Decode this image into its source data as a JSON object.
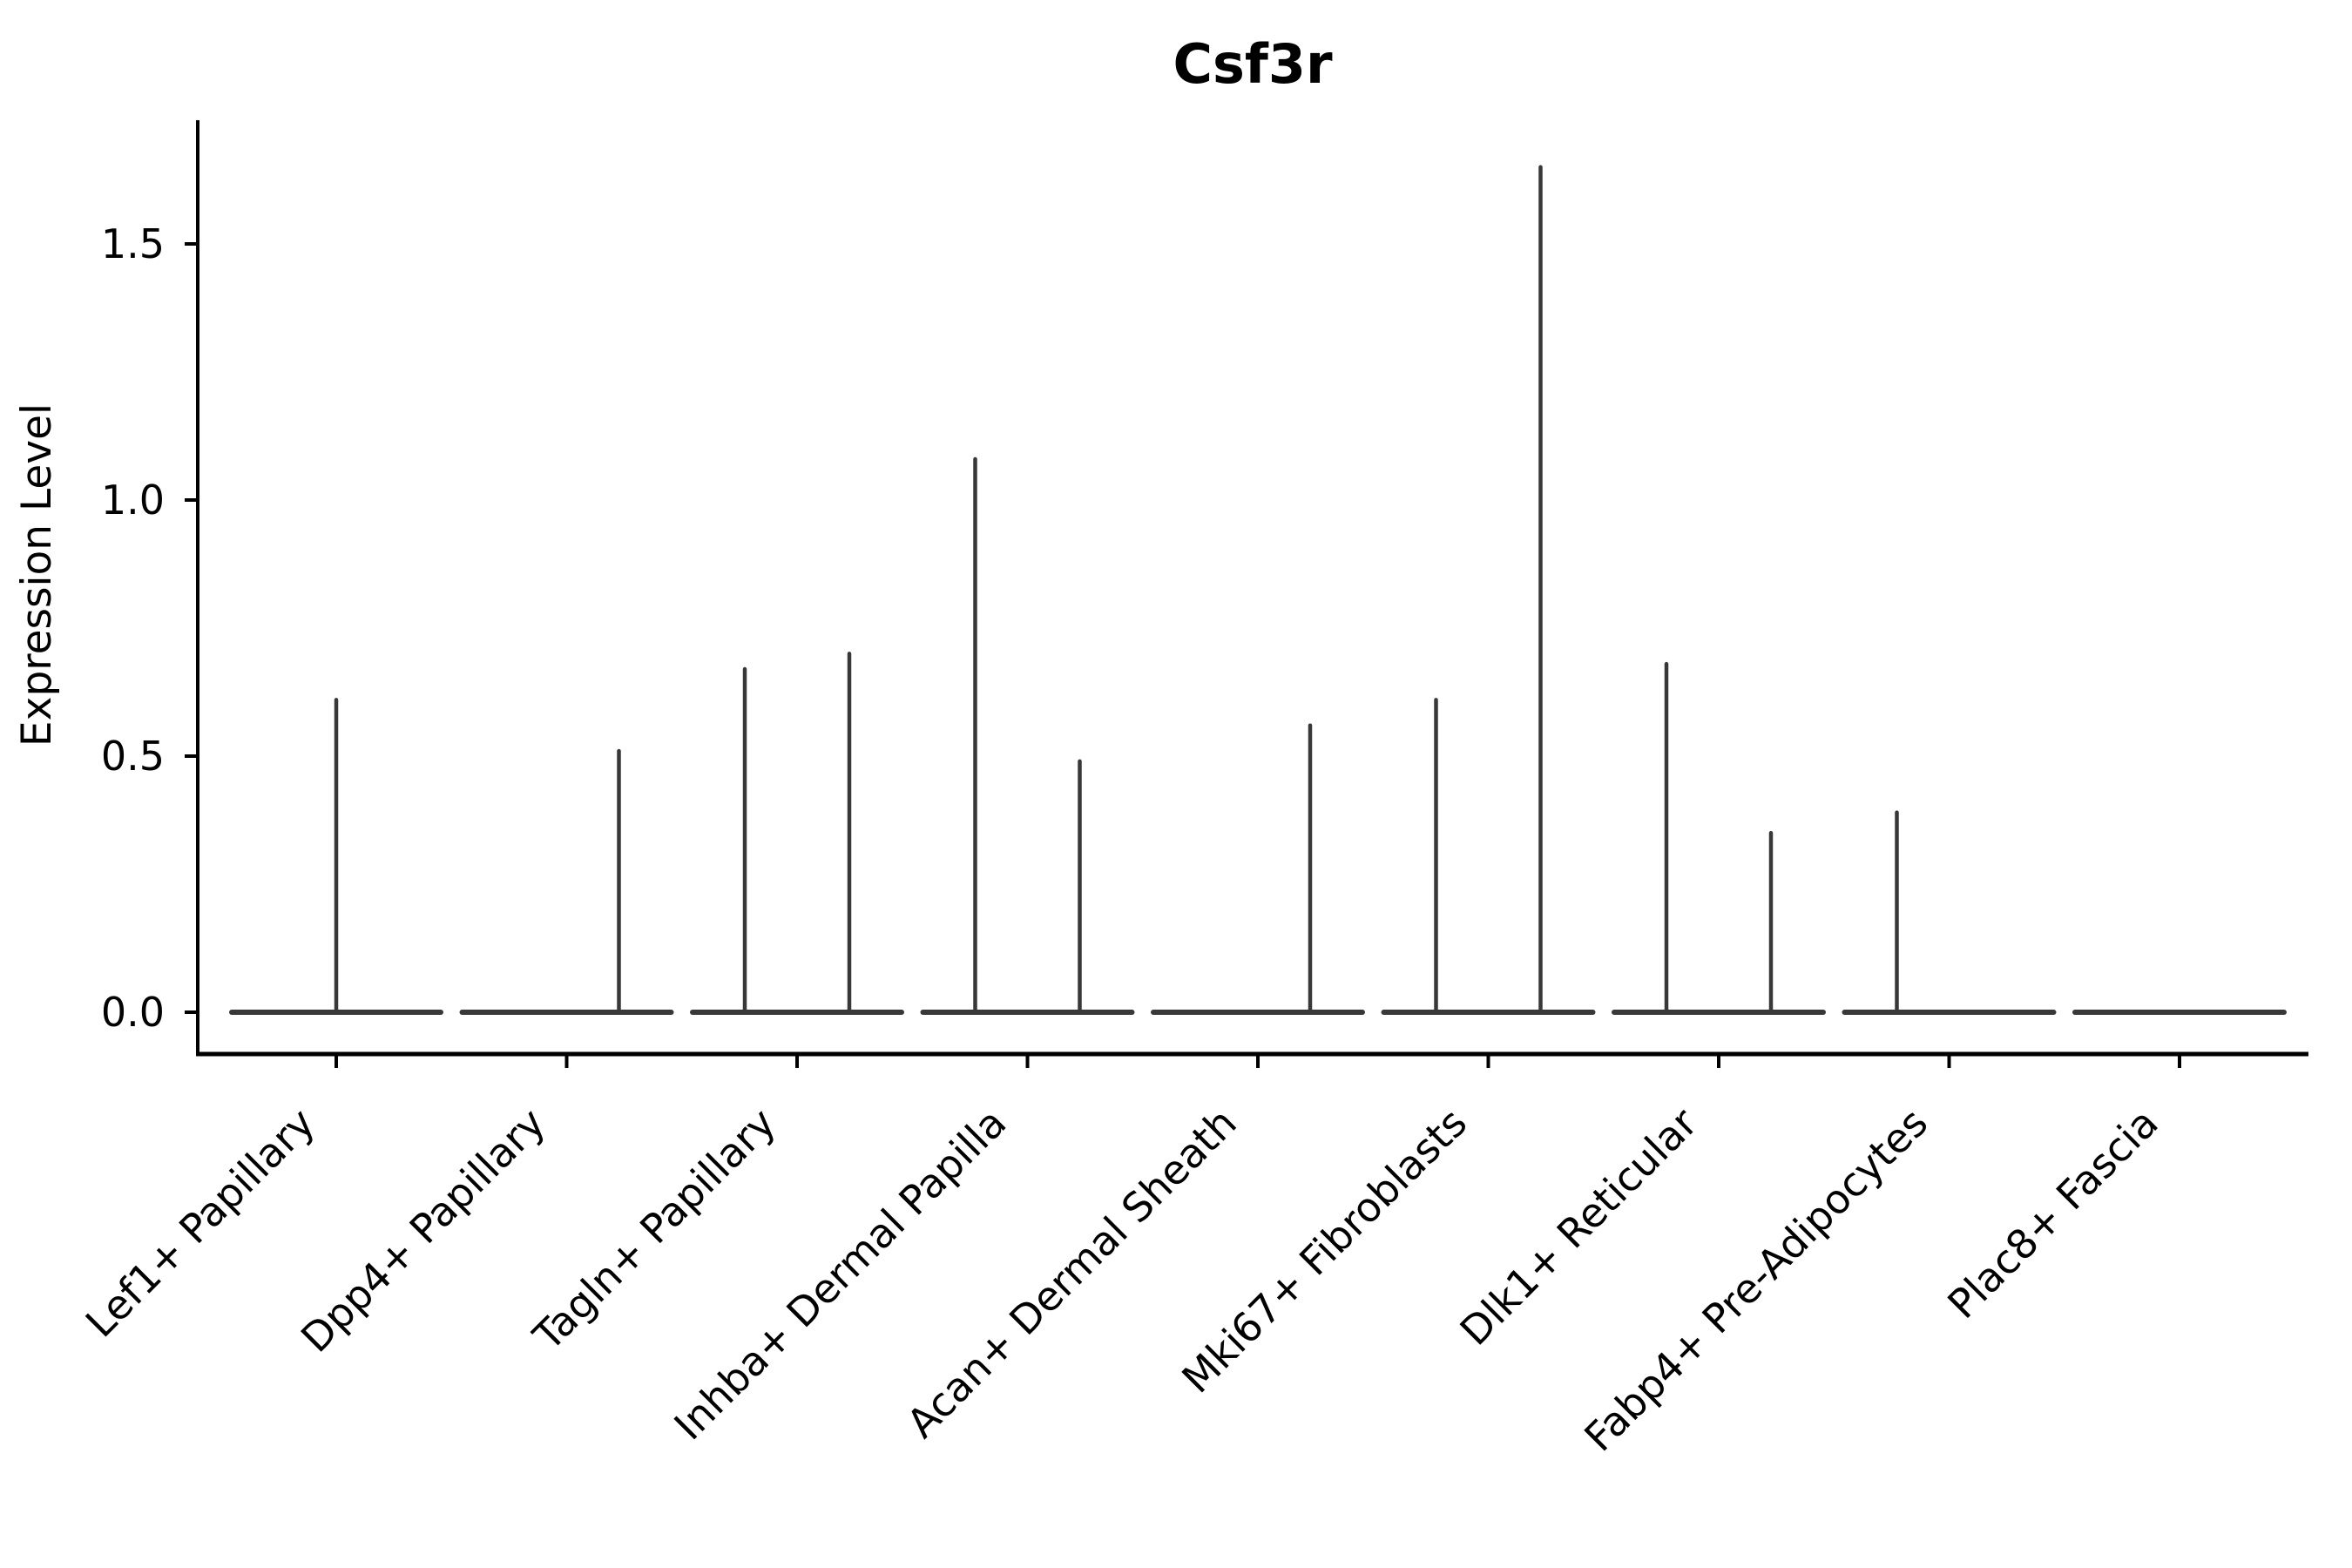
{
  "figure": {
    "title": "Csf3r"
  },
  "chart_data": {
    "type": "violin",
    "title": "Csf3r",
    "xlabel": "",
    "ylabel": "Expression Level",
    "yticks": [
      "0.0",
      "0.5",
      "1.0",
      "1.5"
    ],
    "ytick_values": [
      0.0,
      0.5,
      1.0,
      1.5
    ],
    "ylim": [
      -0.085,
      1.74
    ],
    "grid": false,
    "legend": "none",
    "x_tick_rotation": 45,
    "categories": [
      "Lef1+ Papillary",
      "Dpp4+ Papillary",
      "Tagln+ Papillary",
      "Inhba+ Dermal Papilla",
      "Acan+ Dermal Sheath",
      "Mki67+ Fibroblasts",
      "Dlk1+ Reticular",
      "Fabp4+ Pre-Adipocytes",
      "Plac8+ Fascia"
    ],
    "violins": [
      {
        "category": "Lef1+ Papillary",
        "baseline_expression": 0.0,
        "spikes": [
          {
            "position": "center",
            "max_expression": 0.61
          }
        ]
      },
      {
        "category": "Dpp4+ Papillary",
        "baseline_expression": 0.0,
        "spikes": [
          {
            "position": "right",
            "max_expression": 0.51
          }
        ]
      },
      {
        "category": "Tagln+ Papillary",
        "baseline_expression": 0.0,
        "spikes": [
          {
            "position": "left",
            "max_expression": 0.67
          },
          {
            "position": "right",
            "max_expression": 0.7
          }
        ]
      },
      {
        "category": "Inhba+ Dermal Papilla",
        "baseline_expression": 0.0,
        "spikes": [
          {
            "position": "left",
            "max_expression": 1.08
          },
          {
            "position": "right",
            "max_expression": 0.49
          }
        ]
      },
      {
        "category": "Acan+ Dermal Sheath",
        "baseline_expression": 0.0,
        "spikes": [
          {
            "position": "right",
            "max_expression": 0.56
          }
        ]
      },
      {
        "category": "Mki67+ Fibroblasts",
        "baseline_expression": 0.0,
        "spikes": [
          {
            "position": "left",
            "max_expression": 0.61
          },
          {
            "position": "right",
            "max_expression": 1.65
          }
        ]
      },
      {
        "category": "Dlk1+ Reticular",
        "baseline_expression": 0.0,
        "spikes": [
          {
            "position": "left",
            "max_expression": 0.68
          },
          {
            "position": "right",
            "max_expression": 0.35
          }
        ]
      },
      {
        "category": "Fabp4+ Pre-Adipocytes",
        "baseline_expression": 0.0,
        "spikes": [
          {
            "position": "left",
            "max_expression": 0.39
          }
        ]
      },
      {
        "category": "Plac8+ Fascia",
        "baseline_expression": 0.0,
        "spikes": []
      }
    ],
    "colors": {
      "violin": "#383838",
      "axis": "#000000",
      "text": "#000000",
      "background": "#ffffff"
    }
  }
}
